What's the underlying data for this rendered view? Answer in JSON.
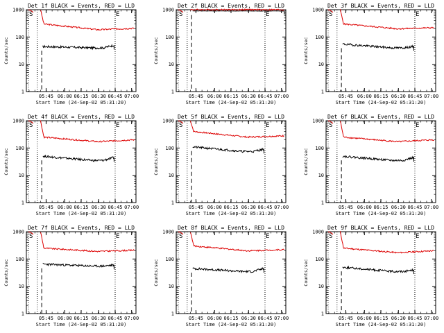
{
  "colors": {
    "events": "#000000",
    "lld": "#dd0000",
    "background": "#ffffff",
    "axes": "#000000"
  },
  "chart_data": [
    {
      "type": "line",
      "title": "Det 1f BLACK = Events, RED = LLD",
      "xlabel": "Start Time (24-Sep-02 05:31:20)",
      "ylabel": "Counts/sec",
      "yscale": "log",
      "ylim": [
        1,
        1000
      ],
      "yticks": [
        "1",
        "10",
        "100",
        "1000"
      ],
      "xticks": [
        "05:45",
        "06:00",
        "06:15",
        "06:30",
        "06:45",
        "07:00"
      ],
      "markers": [
        {
          "label": "S",
          "at": "start"
        },
        {
          "label": "E",
          "at": "06:45"
        }
      ],
      "series": [
        {
          "name": "LLD",
          "color": "red",
          "peak": 1000,
          "level_after_peak": 300,
          "tail_level": 185,
          "end_level": 210
        },
        {
          "name": "Events",
          "color": "black",
          "level": 45,
          "tail_level": 40,
          "end_level": 50
        }
      ]
    },
    {
      "type": "line",
      "title": "Det 2f BLACK = Events, RED = LLD",
      "xlabel": "Start Time (24-Sep-02 05:31:20)",
      "ylabel": "Counts/sec",
      "yscale": "log",
      "ylim": [
        1,
        1000
      ],
      "yticks": [
        "1",
        "10",
        "100",
        "1000"
      ],
      "xticks": [
        "05:45",
        "06:00",
        "06:15",
        "06:30",
        "06:45",
        "07:00"
      ],
      "markers": [
        {
          "label": "S",
          "at": "start"
        },
        {
          "label": "E",
          "at": "06:45"
        }
      ],
      "series": [
        {
          "name": "LLD",
          "color": "red",
          "peak": 1000,
          "level_after_peak": 1000,
          "tail_level": 1000,
          "end_level": 1000
        },
        {
          "name": "Events",
          "color": "black",
          "level": 900,
          "tail_level": 900,
          "end_level": 900
        }
      ]
    },
    {
      "type": "line",
      "title": "Det 3f BLACK = Events, RED = LLD",
      "xlabel": "Start Time (24-Sep-02 05:31:20)",
      "ylabel": "Counts/sec",
      "yscale": "log",
      "ylim": [
        1,
        1000
      ],
      "yticks": [
        "1",
        "10",
        "100",
        "1000"
      ],
      "xticks": [
        "05:45",
        "06:00",
        "06:15",
        "06:30",
        "06:45",
        "07:00"
      ],
      "markers": [
        {
          "label": "S",
          "at": "start"
        },
        {
          "label": "E",
          "at": "06:45"
        }
      ],
      "series": [
        {
          "name": "LLD",
          "color": "red",
          "peak": 1000,
          "level_after_peak": 300,
          "tail_level": 200,
          "end_level": 220
        },
        {
          "name": "Events",
          "color": "black",
          "level": 55,
          "tail_level": 40,
          "end_level": 45
        }
      ]
    },
    {
      "type": "line",
      "title": "Det 4f BLACK = Events, RED = LLD",
      "xlabel": "Start Time (24-Sep-02 05:31:20)",
      "ylabel": "Counts/sec",
      "yscale": "log",
      "ylim": [
        1,
        1000
      ],
      "yticks": [
        "1",
        "10",
        "100",
        "1000"
      ],
      "xticks": [
        "05:45",
        "06:00",
        "06:15",
        "06:30",
        "06:45",
        "07:00"
      ],
      "markers": [
        {
          "label": "S",
          "at": "start"
        },
        {
          "label": "E",
          "at": "06:45"
        }
      ],
      "series": [
        {
          "name": "LLD",
          "color": "red",
          "peak": 1000,
          "level_after_peak": 250,
          "tail_level": 170,
          "end_level": 200
        },
        {
          "name": "Events",
          "color": "black",
          "level": 50,
          "tail_level": 35,
          "end_level": 45
        }
      ]
    },
    {
      "type": "line",
      "title": "Det 5f BLACK = Events, RED = LLD",
      "xlabel": "Start Time (24-Sep-02 05:31:20)",
      "ylabel": "Counts/sec",
      "yscale": "log",
      "ylim": [
        1,
        1000
      ],
      "yticks": [
        "1",
        "10",
        "100",
        "1000"
      ],
      "xticks": [
        "05:45",
        "06:00",
        "06:15",
        "06:30",
        "06:45",
        "07:00"
      ],
      "markers": [
        {
          "label": "S",
          "at": "start"
        },
        {
          "label": "E",
          "at": "06:45"
        }
      ],
      "series": [
        {
          "name": "LLD",
          "color": "red",
          "peak": 1000,
          "level_after_peak": 400,
          "tail_level": 250,
          "end_level": 280
        },
        {
          "name": "Events",
          "color": "black",
          "level": 110,
          "tail_level": 75,
          "end_level": 90
        }
      ]
    },
    {
      "type": "line",
      "title": "Det 6f BLACK = Events, RED = LLD",
      "xlabel": "Start Time (24-Sep-02 05:31:20)",
      "ylabel": "Counts/sec",
      "yscale": "log",
      "ylim": [
        1,
        1000
      ],
      "yticks": [
        "1",
        "10",
        "100",
        "1000"
      ],
      "xticks": [
        "05:45",
        "06:00",
        "06:15",
        "06:30",
        "06:45",
        "07:00"
      ],
      "markers": [
        {
          "label": "S",
          "at": "start"
        },
        {
          "label": "E",
          "at": "06:45"
        }
      ],
      "series": [
        {
          "name": "LLD",
          "color": "red",
          "peak": 1000,
          "level_after_peak": 250,
          "tail_level": 170,
          "end_level": 200
        },
        {
          "name": "Events",
          "color": "black",
          "level": 50,
          "tail_level": 35,
          "end_level": 45
        }
      ]
    },
    {
      "type": "line",
      "title": "Det 7f BLACK = Events, RED = LLD",
      "xlabel": "Start Time (24-Sep-02 05:31:20)",
      "ylabel": "Counts/sec",
      "yscale": "log",
      "ylim": [
        1,
        1000
      ],
      "yticks": [
        "1",
        "10",
        "100",
        "1000"
      ],
      "xticks": [
        "05:45",
        "06:00",
        "06:15",
        "06:30",
        "06:45",
        "07:00"
      ],
      "markers": [
        {
          "label": "S",
          "at": "start"
        },
        {
          "label": "E",
          "at": "06:45"
        }
      ],
      "series": [
        {
          "name": "LLD",
          "color": "red",
          "peak": 1000,
          "level_after_peak": 250,
          "tail_level": 190,
          "end_level": 210
        },
        {
          "name": "Events",
          "color": "black",
          "level": 65,
          "tail_level": 55,
          "end_level": 60
        }
      ]
    },
    {
      "type": "line",
      "title": "Det 8f BLACK = Events, RED = LLD",
      "xlabel": "Start Time (24-Sep-02 05:31:20)",
      "ylabel": "Counts/sec",
      "yscale": "log",
      "ylim": [
        1,
        1000
      ],
      "yticks": [
        "1",
        "10",
        "100",
        "1000"
      ],
      "xticks": [
        "05:45",
        "06:00",
        "06:15",
        "06:30",
        "06:45",
        "07:00"
      ],
      "markers": [
        {
          "label": "S",
          "at": "start"
        },
        {
          "label": "E",
          "at": "06:45"
        }
      ],
      "series": [
        {
          "name": "LLD",
          "color": "red",
          "peak": 1000,
          "level_after_peak": 300,
          "tail_level": 200,
          "end_level": 220
        },
        {
          "name": "Events",
          "color": "black",
          "level": 45,
          "tail_level": 35,
          "end_level": 45
        }
      ]
    },
    {
      "type": "line",
      "title": "Det 9f BLACK = Events, RED = LLD",
      "xlabel": "Start Time (24-Sep-02 05:31:20)",
      "ylabel": "Counts/sec",
      "yscale": "log",
      "ylim": [
        1,
        1000
      ],
      "yticks": [
        "1",
        "10",
        "100",
        "1000"
      ],
      "xticks": [
        "05:45",
        "06:00",
        "06:15",
        "06:30",
        "06:45",
        "07:00"
      ],
      "markers": [
        {
          "label": "S",
          "at": "start"
        },
        {
          "label": "E",
          "at": "06:45"
        }
      ],
      "series": [
        {
          "name": "LLD",
          "color": "red",
          "peak": 1000,
          "level_after_peak": 250,
          "tail_level": 170,
          "end_level": 200
        },
        {
          "name": "Events",
          "color": "black",
          "level": 50,
          "tail_level": 35,
          "end_level": 40
        }
      ]
    }
  ]
}
